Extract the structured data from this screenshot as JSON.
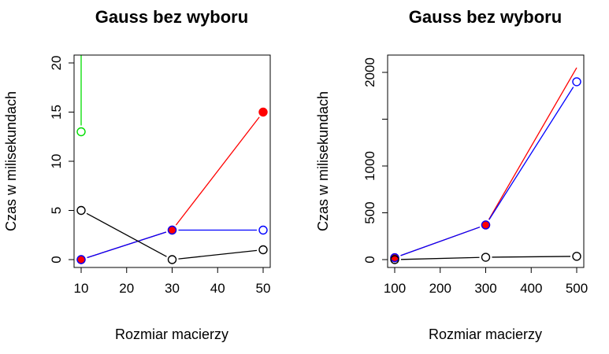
{
  "chart_data": [
    {
      "type": "line",
      "title": "Gauss bez wyboru",
      "xlabel": "Rozmiar macierzy",
      "ylabel": "Czas w milisekundach",
      "xlim": [
        10,
        50
      ],
      "ylim": [
        0,
        20
      ],
      "xticks": [
        10,
        20,
        30,
        40,
        50
      ],
      "yticks": [
        0,
        5,
        10,
        15,
        20
      ],
      "grid": false,
      "series": [
        {
          "color": "#ff0000",
          "marker": "filled-circle",
          "x": [
            10,
            30,
            50
          ],
          "y": [
            0,
            3,
            15
          ]
        },
        {
          "color": "#0000ff",
          "marker": "open-circle",
          "x": [
            10,
            30,
            50
          ],
          "y": [
            0,
            3,
            3
          ]
        },
        {
          "color": "#000000",
          "marker": "open-circle",
          "x": [
            10,
            30,
            50
          ],
          "y": [
            5,
            0,
            1
          ]
        },
        {
          "color": "#00dd00",
          "marker": "open-circle",
          "x": [
            10,
            10
          ],
          "y": [
            13,
            40
          ]
        }
      ]
    },
    {
      "type": "line",
      "title": "Gauss bez wyboru",
      "xlabel": "Rozmiar macierzy",
      "ylabel": "Czas w milisekundach",
      "xlim": [
        100,
        500
      ],
      "ylim": [
        0,
        2000
      ],
      "xticks": [
        100,
        200,
        300,
        400,
        500
      ],
      "yticks": [
        0,
        500,
        1000,
        1500,
        2000
      ],
      "ytick_labels": [
        "0",
        "500",
        "1000",
        "",
        "2000"
      ],
      "grid": false,
      "series": [
        {
          "color": "#ff0000",
          "marker": "filled-circle",
          "x": [
            100,
            300,
            500
          ],
          "y": [
            20,
            370,
            2050
          ]
        },
        {
          "color": "#0000ff",
          "marker": "open-circle",
          "x": [
            100,
            300,
            500
          ],
          "y": [
            20,
            370,
            1900
          ]
        },
        {
          "color": "#000000",
          "marker": "open-circle",
          "x": [
            100,
            300,
            500
          ],
          "y": [
            0,
            25,
            35
          ]
        }
      ]
    }
  ]
}
